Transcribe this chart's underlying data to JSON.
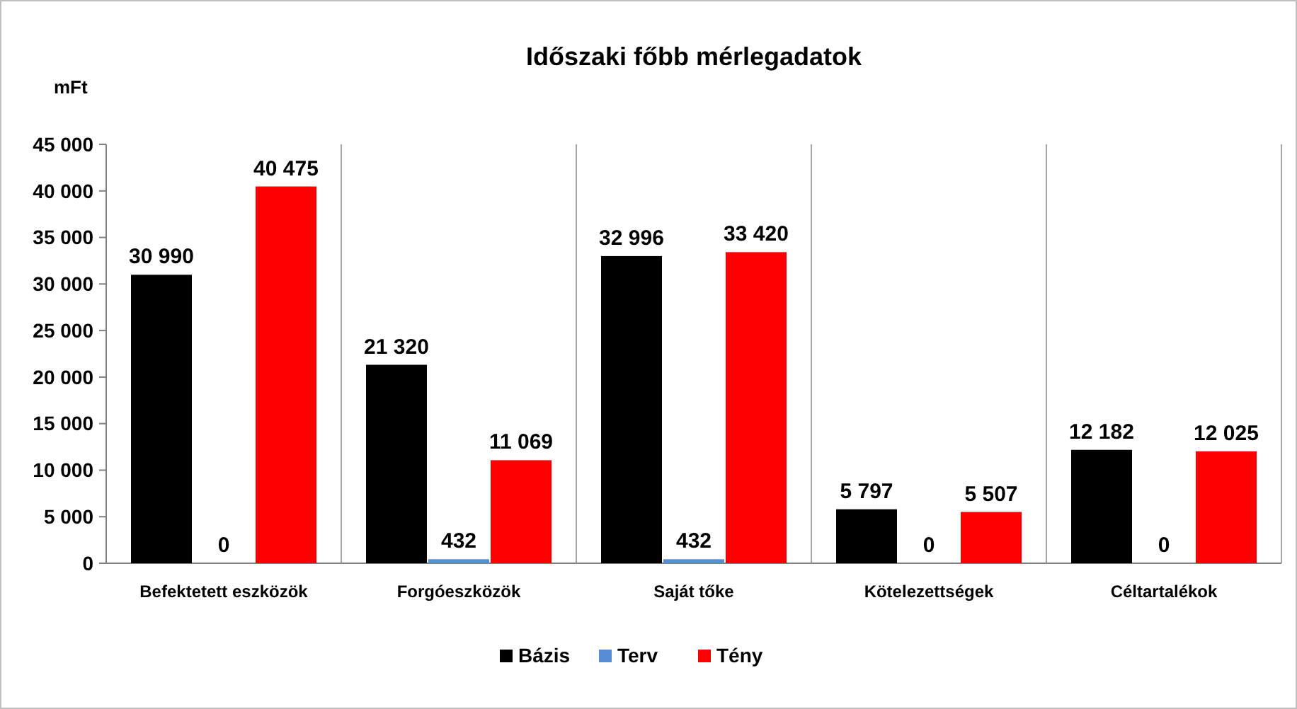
{
  "chart_data": {
    "type": "bar",
    "title": "Időszaki főbb mérlegadatok",
    "ylabel": "mFt",
    "categories": [
      "Befektetett eszközök",
      "Forgóeszközök",
      "Saját tőke",
      "Kötelezettségek",
      "Céltartalékok"
    ],
    "series": [
      {
        "name": "Bázis",
        "color": "#000000",
        "values": [
          30990,
          21320,
          32996,
          5797,
          12182
        ],
        "value_labels": [
          "30 990",
          "21 320",
          "32 996",
          "5 797",
          "12 182"
        ]
      },
      {
        "name": "Terv",
        "color": "#558ed5",
        "values": [
          0,
          432,
          432,
          0,
          0
        ],
        "value_labels": [
          "0",
          "432",
          "432",
          "0",
          "0"
        ]
      },
      {
        "name": "Tény",
        "color": "#ff0000",
        "values": [
          40475,
          11069,
          33420,
          5507,
          12025
        ],
        "value_labels": [
          "40 475",
          "11 069",
          "33 420",
          "5 507",
          "12 025"
        ]
      }
    ],
    "ylim": [
      0,
      45000
    ],
    "yticks": [
      {
        "value": 0,
        "label": "0"
      },
      {
        "value": 5000,
        "label": "5 000"
      },
      {
        "value": 10000,
        "label": "10 000"
      },
      {
        "value": 15000,
        "label": "15 000"
      },
      {
        "value": 20000,
        "label": "20 000"
      },
      {
        "value": 25000,
        "label": "25 000"
      },
      {
        "value": 30000,
        "label": "30 000"
      },
      {
        "value": 35000,
        "label": "35 000"
      },
      {
        "value": 40000,
        "label": "40 000"
      },
      {
        "value": 45000,
        "label": "45 000"
      }
    ],
    "grid": "x",
    "legend": "bottom"
  }
}
